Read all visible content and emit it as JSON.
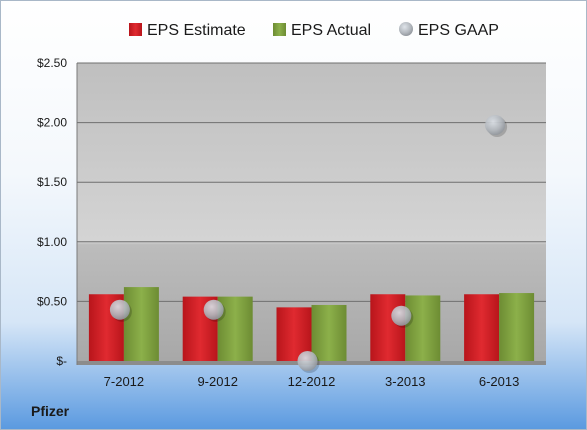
{
  "company": "Pfizer",
  "chart_data": {
    "type": "bar",
    "categories": [
      "7-2012",
      "9-2012",
      "12-2012",
      "3-2013",
      "6-2013"
    ],
    "series": [
      {
        "name": "EPS Estimate",
        "values": [
          0.56,
          0.54,
          0.45,
          0.56,
          0.56
        ],
        "color": "#d42127"
      },
      {
        "name": "EPS Actual",
        "values": [
          0.62,
          0.54,
          0.47,
          0.55,
          0.57
        ],
        "color": "#7fa03f"
      },
      {
        "name": "EPS GAAP",
        "values": [
          0.43,
          0.43,
          0.0,
          0.38,
          1.98
        ],
        "color": "#b9c4d2",
        "style": "marker"
      }
    ],
    "yticks": [
      {
        "value": 0,
        "label": "$-"
      },
      {
        "value": 0.5,
        "label": "$0.50"
      },
      {
        "value": 1.0,
        "label": "$1.00"
      },
      {
        "value": 1.5,
        "label": "$1.50"
      },
      {
        "value": 2.0,
        "label": "$2.00"
      },
      {
        "value": 2.5,
        "label": "$2.50"
      }
    ],
    "ylim": [
      0,
      2.5
    ],
    "grid": true,
    "legend_position": "top"
  }
}
